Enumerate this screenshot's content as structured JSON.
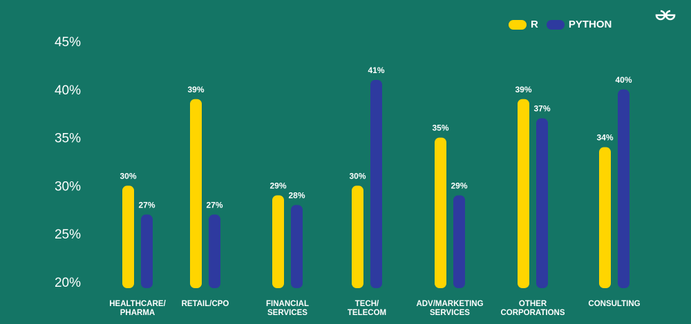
{
  "chart_data": {
    "type": "bar",
    "categories": [
      [
        "HEALTHCARE/",
        "PHARMA"
      ],
      [
        "RETAIL/CPO"
      ],
      [
        "FINANCIAL",
        "SERVICES"
      ],
      [
        "TECH/",
        "TELECOM"
      ],
      [
        "ADV/MARKETING",
        "SERVICES"
      ],
      [
        "OTHER",
        "CORPORATIONS"
      ],
      [
        "CONSULTING"
      ]
    ],
    "series": [
      {
        "name": "R",
        "values": [
          30,
          39,
          29,
          30,
          35,
          39,
          34
        ],
        "labels": [
          "30%",
          "39%",
          "29%",
          "30%",
          "35%",
          "39%",
          "34%"
        ]
      },
      {
        "name": "PYTHON",
        "values": [
          27,
          27,
          28,
          41,
          29,
          37,
          40
        ],
        "labels": [
          "27%",
          "27%",
          "28%",
          "41%",
          "29%",
          "37%",
          "40%"
        ]
      }
    ],
    "ylim": [
      20,
      45
    ],
    "yticks": [
      "20%",
      "25%",
      "30%",
      "35%",
      "40%",
      "45%"
    ],
    "grid": false,
    "legend_position": "top-right"
  },
  "colors": {
    "background": "#147565",
    "R": "#FFD500",
    "PYTHON": "#2E3A9F"
  },
  "logo": {
    "text": "GG",
    "icon": "gfg-logo"
  }
}
